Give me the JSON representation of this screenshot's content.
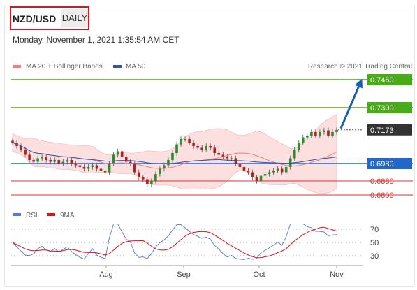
{
  "header": {
    "symbol": "NZD/USD",
    "timeframe": "DAILY",
    "timestamp": "Monday, November 1, 2021 1:35:54 AM CET"
  },
  "chart_data": {
    "type": "candlestick",
    "title": "NZD/USD",
    "legend": [
      {
        "name": "MA 20 + Bollinger Bands",
        "color": "#f08080"
      },
      {
        "name": "MA 50",
        "color": "#3355aa"
      }
    ],
    "credit": "Research © 2021 Trading Central",
    "x_ticks": [
      "Aug",
      "Sep",
      "Oct",
      "Nov"
    ],
    "ylim": [
      0.676,
      0.75
    ],
    "levels": [
      {
        "value": 0.746,
        "label": "0.7460",
        "kind": "resistance",
        "color": "#4aaa1a"
      },
      {
        "value": 0.73,
        "label": "0.7300",
        "kind": "resistance",
        "color": "#4aaa1a"
      },
      {
        "value": 0.7173,
        "label": "0.7173",
        "kind": "last",
        "color": "#333333"
      },
      {
        "value": 0.698,
        "label": "0.6980",
        "kind": "pivot",
        "color": "#2266cc"
      },
      {
        "value": 0.688,
        "label": "0.6880",
        "kind": "support",
        "color": "#e03030"
      },
      {
        "value": 0.68,
        "label": "0.6800",
        "kind": "support",
        "color": "#e03030"
      }
    ],
    "close_series": [
      0.71,
      0.708,
      0.706,
      0.703,
      0.7,
      0.699,
      0.701,
      0.702,
      0.7,
      0.699,
      0.7,
      0.698,
      0.699,
      0.7,
      0.698,
      0.697,
      0.696,
      0.695,
      0.696,
      0.697,
      0.695,
      0.694,
      0.693,
      0.698,
      0.703,
      0.705,
      0.702,
      0.699,
      0.698,
      0.693,
      0.69,
      0.689,
      0.686,
      0.688,
      0.692,
      0.695,
      0.697,
      0.7,
      0.704,
      0.709,
      0.712,
      0.712,
      0.71,
      0.708,
      0.707,
      0.706,
      0.708,
      0.707,
      0.704,
      0.703,
      0.702,
      0.701,
      0.701,
      0.698,
      0.696,
      0.694,
      0.693,
      0.69,
      0.688,
      0.691,
      0.692,
      0.693,
      0.694,
      0.695,
      0.693,
      0.696,
      0.701,
      0.706,
      0.71,
      0.713,
      0.714,
      0.716,
      0.714,
      0.716,
      0.717,
      0.714,
      0.716,
      0.7173
    ],
    "rsi": {
      "legend": [
        {
          "name": "RSI",
          "color": "#5577cc"
        },
        {
          "name": "9MA",
          "color": "#dd1111"
        }
      ],
      "ticks": [
        "70",
        "50",
        "30"
      ],
      "ylim": [
        20,
        80
      ]
    }
  }
}
